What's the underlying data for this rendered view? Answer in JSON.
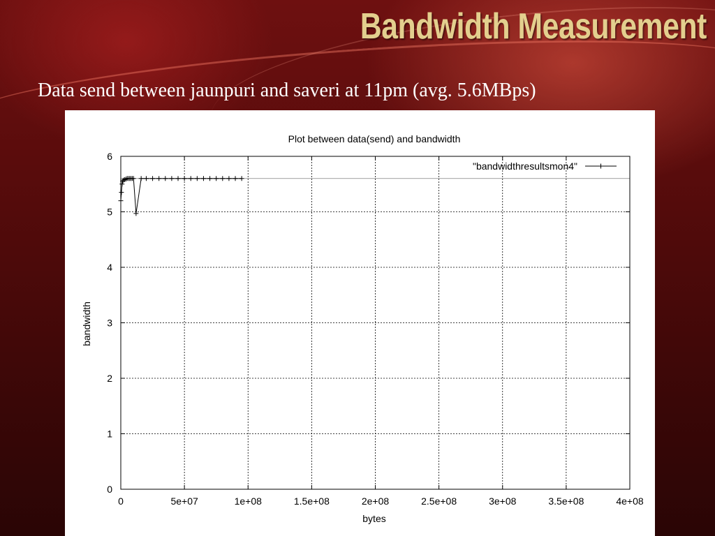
{
  "slide": {
    "title": "Bandwidth Measurement",
    "subtitle": "Data send between jaunpuri and saveri at 11pm (avg. 5.6MBps)"
  },
  "colors": {
    "background": "#5a0c0c",
    "title_text": "#e3cf8e",
    "subtitle_text": "#ffffff",
    "plot_background": "#ffffff",
    "series_line": "#000000"
  },
  "chart_data": {
    "type": "line",
    "title": "Plot between data(send) and bandwidth",
    "xlabel": "bytes",
    "ylabel": "bandwidth",
    "xlim": [
      0,
      400000000
    ],
    "ylim": [
      0,
      6
    ],
    "x_ticks": [
      "0",
      "5e+07",
      "1e+08",
      "1.5e+08",
      "2e+08",
      "2.5e+08",
      "3e+08",
      "3.5e+08",
      "4e+08"
    ],
    "y_ticks": [
      "0",
      "1",
      "2",
      "3",
      "4",
      "5",
      "6"
    ],
    "grid": true,
    "legend_position": "top-right",
    "series": [
      {
        "name": "\"bandwidthresultsmon4\"",
        "marker": "+",
        "x": [
          0,
          500000,
          1000000,
          1500000,
          2000000,
          3000000,
          4000000,
          5000000,
          6000000,
          7000000,
          8000000,
          9000000,
          10000000,
          12000000,
          16000000,
          20000000,
          25000000,
          30000000,
          35000000,
          40000000,
          45000000,
          50000000,
          55000000,
          60000000,
          65000000,
          70000000,
          75000000,
          80000000,
          85000000,
          90000000,
          95000000
        ],
        "y": [
          5.2,
          5.35,
          5.5,
          5.55,
          5.57,
          5.58,
          5.59,
          5.6,
          5.6,
          5.6,
          5.6,
          5.6,
          5.6,
          4.97,
          5.6,
          5.6,
          5.6,
          5.6,
          5.6,
          5.6,
          5.6,
          5.6,
          5.6,
          5.6,
          5.6,
          5.6,
          5.6,
          5.6,
          5.6,
          5.6,
          5.6
        ]
      }
    ],
    "reference_line": 5.6
  }
}
